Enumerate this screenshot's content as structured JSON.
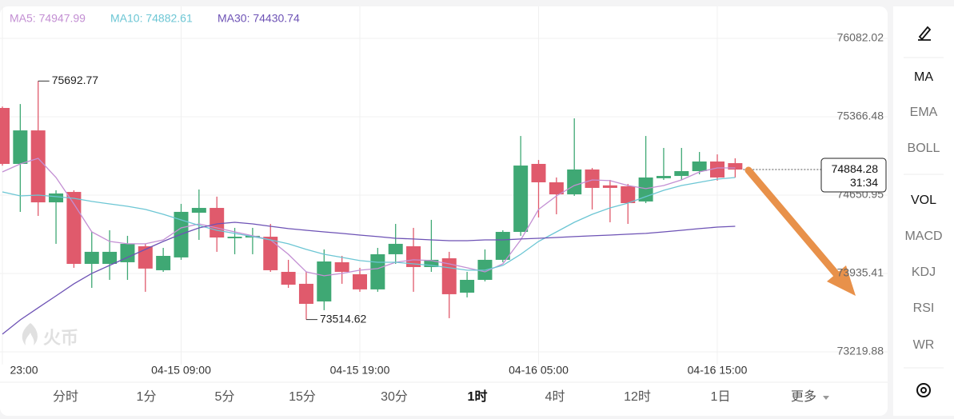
{
  "chart_data": {
    "type": "candlestick",
    "legend": [
      "MA5: 74947.99",
      "MA10: 74882.61",
      "MA30: 74430.74"
    ],
    "categories": [
      "23:00",
      null,
      null,
      null,
      null,
      null,
      null,
      null,
      null,
      null,
      "04-15 09:00",
      null,
      null,
      null,
      null,
      null,
      null,
      null,
      null,
      null,
      "04-15 19:00",
      null,
      null,
      null,
      null,
      null,
      null,
      null,
      null,
      null,
      "04-16 05:00",
      null,
      null,
      null,
      null,
      null,
      null,
      null,
      null,
      null,
      "04-16 15:00",
      null
    ],
    "open": [
      75447,
      74936,
      75242,
      74585,
      74680,
      74023,
      74023,
      74038,
      74184,
      73965,
      74082,
      74490,
      74534,
      74257,
      74264,
      74271,
      73950,
      73841,
      73680,
      74038,
      73928,
      73790,
      74111,
      74184,
      73994,
      74074,
      73760,
      73877,
      74060,
      74315,
      74936,
      74768,
      74658,
      74885,
      74740,
      74732,
      74593,
      74805,
      74826,
      74870,
      74958,
      74943
    ],
    "high": [
      75460,
      75483,
      75692.77,
      74695,
      74695,
      74315,
      74330,
      74279,
      74206,
      74169,
      74571,
      74702,
      74637,
      74352,
      74352,
      74388,
      74060,
      73950,
      74155,
      74096,
      73987,
      74169,
      74388,
      74352,
      74425,
      74133,
      73950,
      74155,
      74330,
      75191,
      74972,
      74812,
      75352,
      74899,
      74790,
      74753,
      75191,
      75082,
      75082,
      75045,
      75023,
      74987
    ],
    "low": [
      74920,
      74498,
      74461,
      74206,
      73987,
      73804,
      73877,
      73877,
      73768,
      73950,
      74060,
      74242,
      74133,
      74111,
      74111,
      73950,
      73804,
      73514.62,
      73600,
      73841,
      73768,
      73768,
      74023,
      73768,
      73950,
      73527,
      73717,
      73863,
      74038,
      74279,
      74447,
      74476,
      74644,
      74520,
      74403,
      74388,
      74578,
      74790,
      74790,
      74841,
      74783,
      74812
    ],
    "close": [
      74936,
      75242,
      74585,
      74666,
      74023,
      74133,
      74133,
      74206,
      73980,
      74096,
      74498,
      74534,
      74264,
      74271,
      74279,
      73965,
      73833,
      73658,
      74045,
      73950,
      73790,
      74111,
      74206,
      73994,
      74060,
      73746,
      73877,
      74060,
      74315,
      74921,
      74768,
      74658,
      74885,
      74717,
      74717,
      74578,
      74812,
      74826,
      74870,
      74958,
      74812,
      74884.28
    ],
    "up_color": "#3fa874",
    "down_color": "#e05a6c",
    "series": [
      {
        "name": "MA5",
        "color": "#c38fd3",
        "values": [
          74863,
          74936,
          74987,
          74812,
          74571,
          74315,
          74228,
          74206,
          74206,
          74242,
          74352,
          74388,
          74352,
          74315,
          74279,
          74242,
          74111,
          73950,
          73914,
          73936,
          73965,
          73980,
          74038,
          74060,
          74053,
          74023,
          73987,
          73950,
          74023,
          74242,
          74520,
          74644,
          74739,
          74790,
          74783,
          74739,
          74710,
          74739,
          74790,
          74863,
          74899,
          74899
        ]
      },
      {
        "name": "MA10",
        "color": "#6cc6d4",
        "values": [
          74680,
          74644,
          74651,
          74637,
          74622,
          74593,
          74571,
          74549,
          74520,
          74476,
          74425,
          74374,
          74330,
          74301,
          74272,
          74242,
          74206,
          74155,
          74111,
          74082,
          74053,
          74038,
          74038,
          74023,
          74009,
          73987,
          73965,
          73965,
          74009,
          74111,
          74228,
          74315,
          74403,
          74476,
          74534,
          74578,
          74637,
          74695,
          74739,
          74768,
          74797,
          74812
        ]
      },
      {
        "name": "MA30",
        "color": "#6d52b5",
        "values": [
          73381,
          73512,
          73622,
          73731,
          73841,
          73936,
          74009,
          74082,
          74155,
          74228,
          74294,
          74352,
          74388,
          74403,
          74388,
          74366,
          74345,
          74330,
          74315,
          74301,
          74286,
          74272,
          74257,
          74250,
          74242,
          74235,
          74235,
          74242,
          74242,
          74250,
          74257,
          74264,
          74272,
          74279,
          74286,
          74294,
          74301,
          74315,
          74330,
          74345,
          74359,
          74366
        ]
      }
    ],
    "ylim": [
      73100,
      76400
    ],
    "yticks": [
      73219.88,
      73935.41,
      74650.95,
      75366.48,
      76082.02
    ],
    "grid": true,
    "countdown": "31:34",
    "watermark": "火币"
  },
  "timeframes": [
    "分时",
    "1分",
    "5分",
    "15分",
    "30分",
    "1时",
    "4时",
    "12时",
    "1日",
    "更多"
  ],
  "selected_timeframe": 5,
  "indicators": [
    "MA",
    "EMA",
    "BOLL",
    "VOL",
    "MACD",
    "KDJ",
    "RSI",
    "WR"
  ]
}
